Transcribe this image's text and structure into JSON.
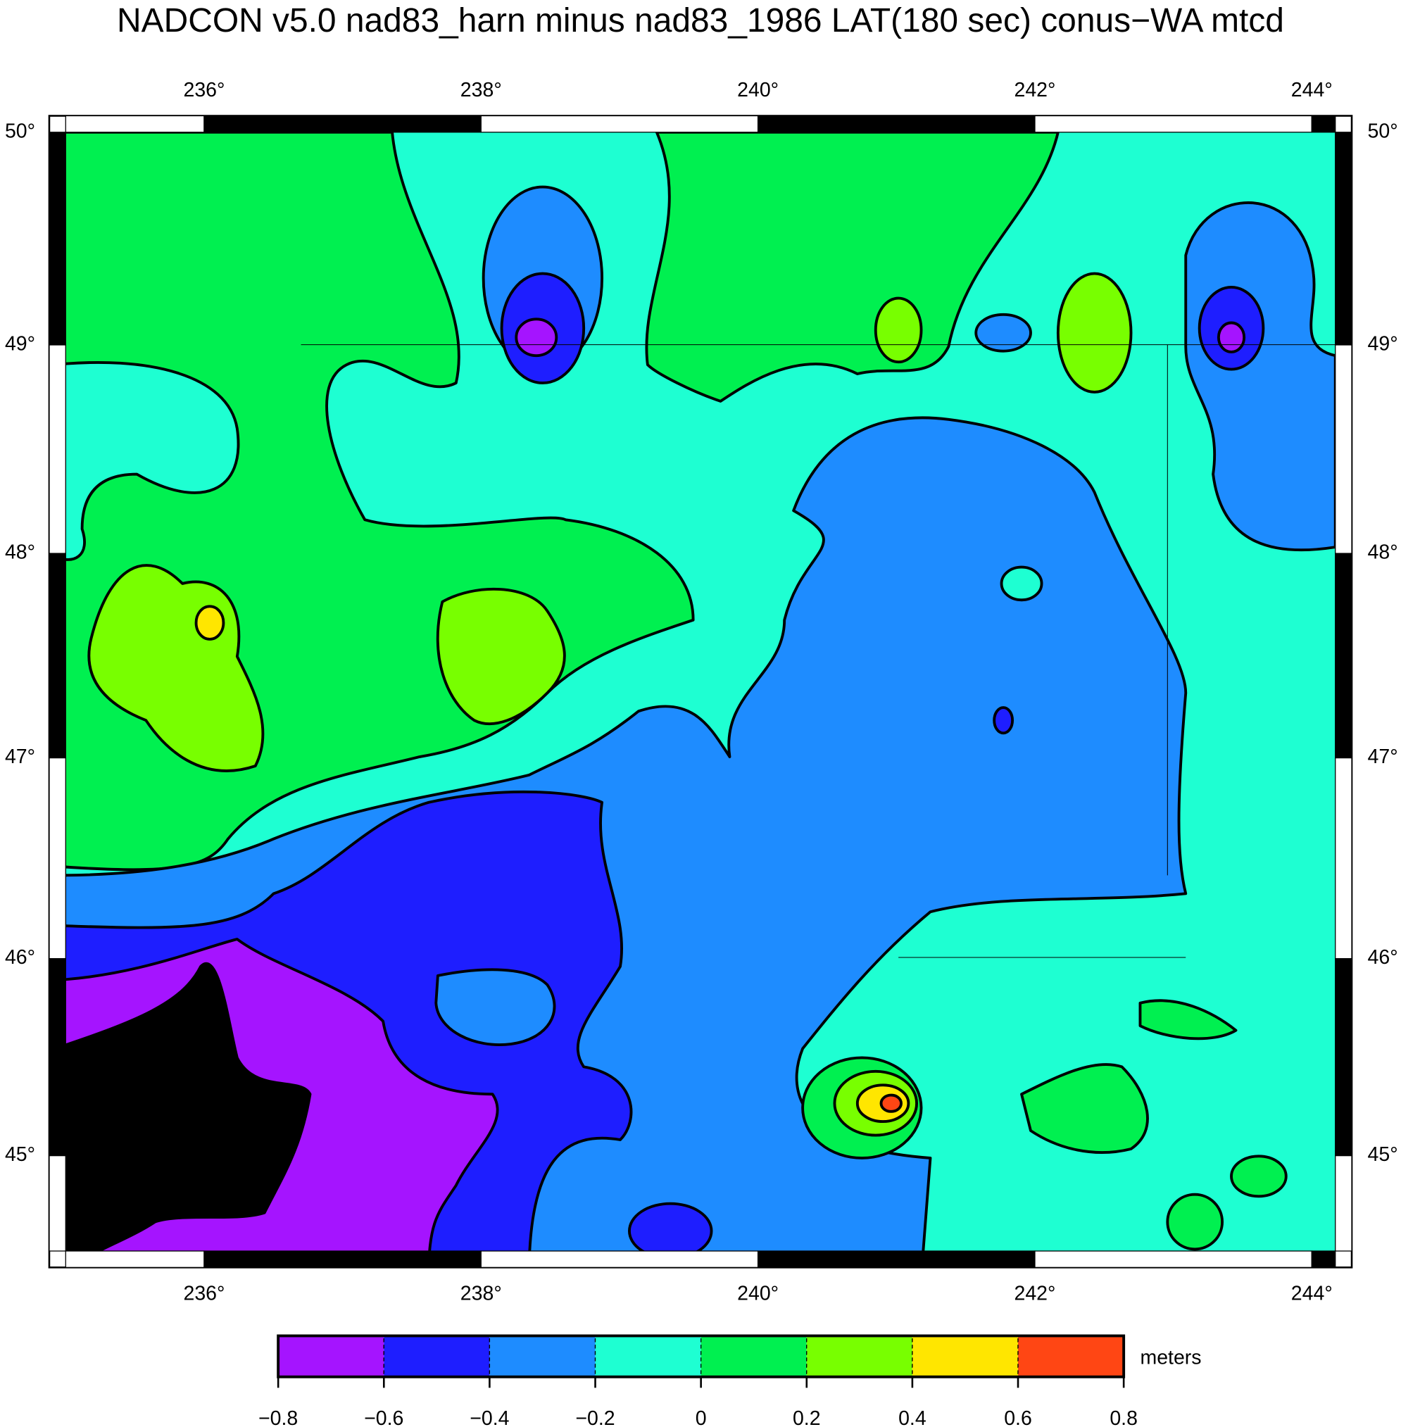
{
  "title": "NADCON v5.0 nad83_harn minus nad83_1986 LAT(180 sec) conus−WA mtcd",
  "map": {
    "projection": "mercator",
    "xlim": [
      235,
      244.17
    ],
    "ylim": [
      44.51,
      50
    ],
    "xticks": [
      {
        "value": 236,
        "label": "236°"
      },
      {
        "value": 238,
        "label": "238°"
      },
      {
        "value": 240,
        "label": "240°"
      },
      {
        "value": 242,
        "label": "242°"
      },
      {
        "value": 244,
        "label": "244°"
      }
    ],
    "yticks": [
      {
        "value": 45,
        "label": "45°"
      },
      {
        "value": 46,
        "label": "46°"
      },
      {
        "value": 47,
        "label": "47°"
      },
      {
        "value": 48,
        "label": "48°"
      },
      {
        "value": 49,
        "label": "49°"
      },
      {
        "value": 50,
        "label": "50°"
      }
    ]
  },
  "colorbar": {
    "label": "meters",
    "colors": [
      "#a514ff",
      "#1e1eff",
      "#1e8cff",
      "#1effd2",
      "#00f050",
      "#78ff00",
      "#ffe600",
      "#ff4614"
    ],
    "ticks": [
      {
        "value": -0.8,
        "label": "−0.8"
      },
      {
        "value": -0.6,
        "label": "−0.6"
      },
      {
        "value": -0.4,
        "label": "−0.4"
      },
      {
        "value": -0.2,
        "label": "−0.2"
      },
      0,
      0.2,
      0.4,
      0.6,
      0.8
    ]
  }
}
